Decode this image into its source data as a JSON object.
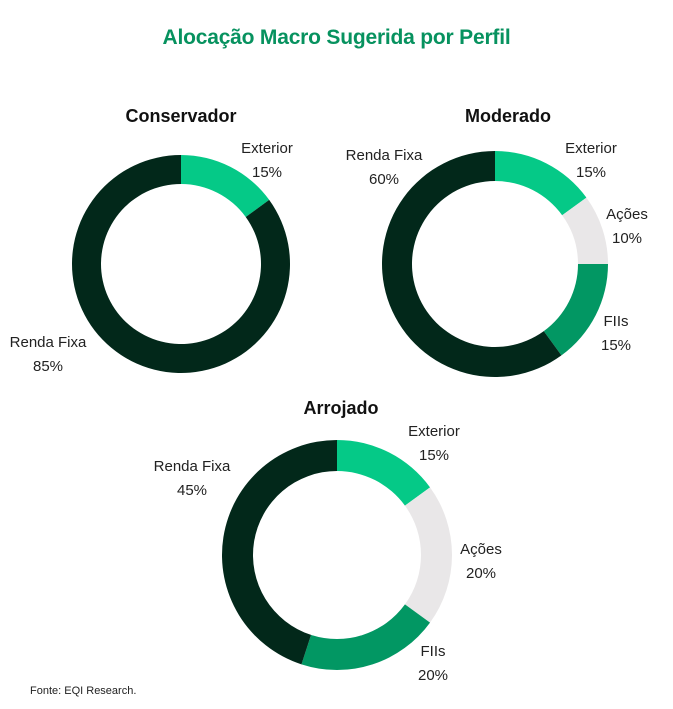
{
  "title": "Alocação Macro Sugerida por Perfil",
  "source": "Fonte: EQI Research.",
  "colors": {
    "renda_fixa": "#02281a",
    "exterior": "#05c987",
    "acoes": "#e9e7e8",
    "fiis": "#029763",
    "title": "#07925f"
  },
  "chart_data": [
    {
      "type": "pie",
      "variant": "donut",
      "title": "Conservador",
      "categories": [
        "Exterior",
        "Renda Fixa"
      ],
      "values": [
        15,
        85
      ],
      "labels": [
        "Exterior 15%",
        "Renda Fixa 85%"
      ],
      "start": "12 o'clock, clockwise"
    },
    {
      "type": "pie",
      "variant": "donut",
      "title": "Moderado",
      "categories": [
        "Exterior",
        "Ações",
        "FIIs",
        "Renda Fixa"
      ],
      "values": [
        15,
        10,
        15,
        60
      ],
      "labels": [
        "Exterior 15%",
        "Ações 10%",
        "FIIs 15%",
        "Renda Fixa 60%"
      ],
      "start": "12 o'clock, clockwise"
    },
    {
      "type": "pie",
      "variant": "donut",
      "title": "Arrojado",
      "categories": [
        "Exterior",
        "Ações",
        "FIIs",
        "Renda Fixa"
      ],
      "values": [
        15,
        20,
        20,
        45
      ],
      "labels": [
        "Exterior 15%",
        "Ações 20%",
        "FIIs 20%",
        "Renda Fixa 45%"
      ],
      "start": "12 o'clock, clockwise"
    }
  ],
  "charts": {
    "conservador": {
      "title": "Conservador",
      "exterior": {
        "name": "Exterior",
        "pct": "15%"
      },
      "renda_fixa": {
        "name": "Renda Fixa",
        "pct": "85%"
      }
    },
    "moderado": {
      "title": "Moderado",
      "exterior": {
        "name": "Exterior",
        "pct": "15%"
      },
      "acoes": {
        "name": "Ações",
        "pct": "10%"
      },
      "fiis": {
        "name": "FIIs",
        "pct": "15%"
      },
      "renda_fixa": {
        "name": "Renda Fixa",
        "pct": "60%"
      }
    },
    "arrojado": {
      "title": "Arrojado",
      "exterior": {
        "name": "Exterior",
        "pct": "15%"
      },
      "acoes": {
        "name": "Ações",
        "pct": "20%"
      },
      "fiis": {
        "name": "FIIs",
        "pct": "20%"
      },
      "renda_fixa": {
        "name": "Renda Fixa",
        "pct": "45%"
      }
    }
  }
}
